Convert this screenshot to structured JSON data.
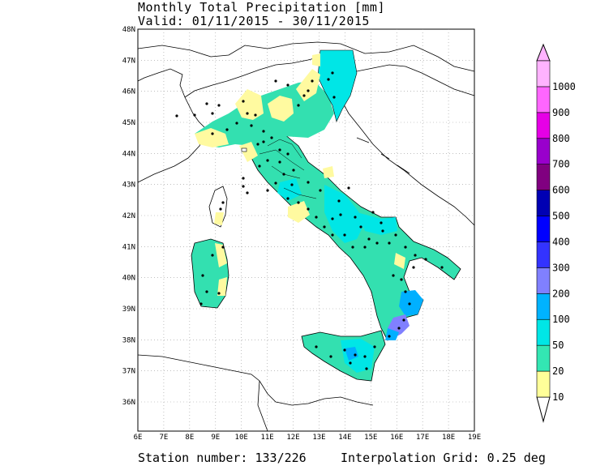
{
  "title_line1": "Monthly Total Precipitation [mm]",
  "title_line2": "Valid: 01/11/2015 - 30/11/2015",
  "footer_station": "Station number: 133/226",
  "footer_grid": "Interpolation Grid: 0.25 deg",
  "lat_labels": [
    "48N",
    "47N",
    "46N",
    "45N",
    "44N",
    "43N",
    "42N",
    "41N",
    "40N",
    "39N",
    "38N",
    "37N",
    "36N"
  ],
  "lon_labels": [
    "6E",
    "7E",
    "8E",
    "9E",
    "10E",
    "11E",
    "12E",
    "13E",
    "14E",
    "15E",
    "16E",
    "17E",
    "18E",
    "19E"
  ],
  "legend": {
    "levels": [
      "10",
      "20",
      "50",
      "100",
      "200",
      "300",
      "400",
      "500",
      "600",
      "700",
      "800",
      "900",
      "1000"
    ],
    "colors": [
      "#ffff99",
      "#33e6b3",
      "#00e6e6",
      "#00b3ff",
      "#8080ff",
      "#3333ff",
      "#0000ff",
      "#0000b3",
      "#800080",
      "#9900cc",
      "#e600e6",
      "#ff66ff",
      "#ffb3ff"
    ]
  },
  "colors": {
    "c10": "#fffaa0",
    "c20": "#33e0b0",
    "c50": "#00e6e6",
    "c100": "#00b0ff",
    "c200": "#8080ff"
  }
}
